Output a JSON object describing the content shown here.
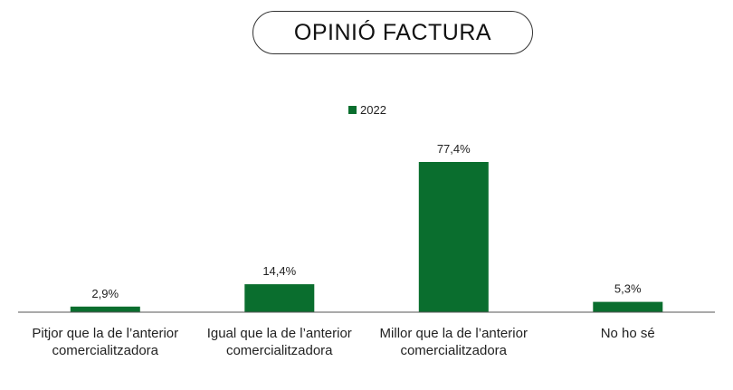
{
  "chart_data": {
    "type": "bar",
    "title": "OPINIÓ FACTURA",
    "categories": [
      [
        "Pitjor que la de l’anterior",
        "comercialitzadora"
      ],
      [
        "Igual que la de l’anterior",
        "comercialitzadora"
      ],
      [
        "Millor que la de l’anterior",
        "comercialitzadora"
      ],
      [
        "No ho sé"
      ]
    ],
    "series": [
      {
        "name": "2022",
        "values": [
          2.9,
          14.4,
          77.4,
          5.3
        ],
        "labels": [
          "2,9%",
          "14,4%",
          "77,4%",
          "5,3%"
        ]
      }
    ],
    "ylim": [
      0,
      100
    ],
    "grid": false,
    "legend": "top-center",
    "colors": {
      "bar": "#0a6e2e",
      "axis": "#555555"
    }
  }
}
